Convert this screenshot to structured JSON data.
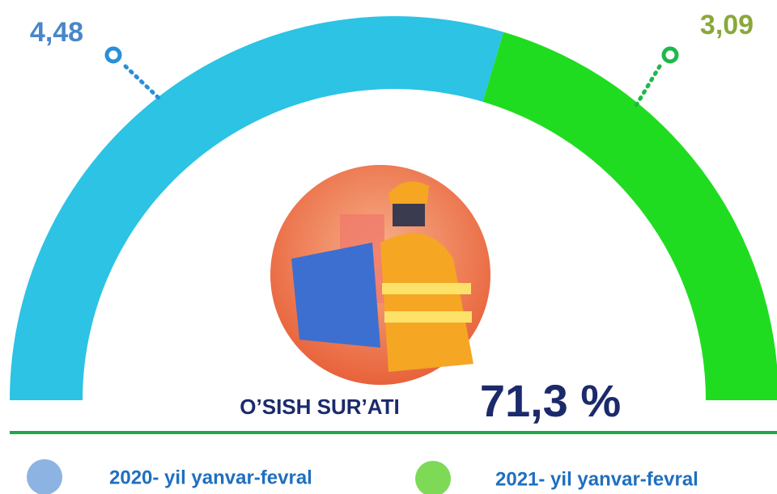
{
  "chart_data": {
    "type": "half-donut",
    "categories": [
      "2020- yil yanvar-fevral",
      "2021- yil yanvar-fevral"
    ],
    "values": [
      4.48,
      3.09
    ],
    "value_labels": [
      "4,48",
      "3,09"
    ],
    "colors": [
      "#2cc3e4",
      "#20dc20"
    ],
    "annotations": [
      {
        "text": "O’SISH SUR’ATI"
      },
      {
        "text": "71,3 %"
      }
    ]
  }
}
